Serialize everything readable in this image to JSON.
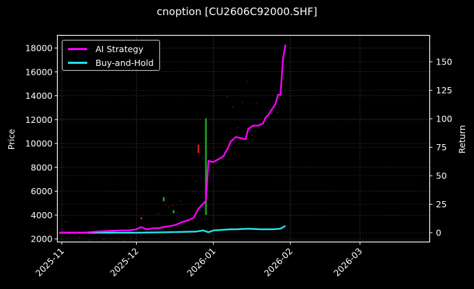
{
  "chart_data": {
    "type": "line",
    "title": "cnoption [CU2606C92000.SHF]",
    "xlabel": "",
    "ylabel": "Price",
    "ylabel_right": "Return",
    "x_tick_labels": [
      "2025-11",
      "2025-12",
      "2026-01",
      "2026-02",
      "2026-03"
    ],
    "y_ticks_left": [
      2000,
      4000,
      6000,
      8000,
      10000,
      12000,
      14000,
      16000,
      18000
    ],
    "y_ticks_right": [
      0,
      25,
      50,
      75,
      100,
      125,
      150
    ],
    "ylim_left": [
      1800,
      19100
    ],
    "ylim_right": [
      -5,
      173
    ],
    "grid": true,
    "legend_position": "upper left",
    "background": "#000000",
    "series": [
      {
        "name": "AI Strategy",
        "axis": "right",
        "color": "#ff00ff",
        "x": [
          "2025-10-31",
          "2025-11-05",
          "2025-11-10",
          "2025-11-15",
          "2025-11-20",
          "2025-11-25",
          "2025-11-28",
          "2025-12-01",
          "2025-12-03",
          "2025-12-05",
          "2025-12-08",
          "2025-12-10",
          "2025-12-12",
          "2025-12-15",
          "2025-12-17",
          "2025-12-19",
          "2025-12-22",
          "2025-12-24",
          "2025-12-26",
          "2025-12-29",
          "2025-12-30",
          "2026-01-01",
          "2026-01-05",
          "2026-01-07",
          "2026-01-08",
          "2026-01-10",
          "2026-01-12",
          "2026-01-14",
          "2026-01-15",
          "2026-01-17",
          "2026-01-19",
          "2026-01-21",
          "2026-01-22",
          "2026-01-23",
          "2026-01-26",
          "2026-01-27",
          "2026-01-28",
          "2026-01-29",
          "2026-01-30"
        ],
        "values": [
          0,
          0,
          0,
          1,
          1.5,
          2,
          2,
          3,
          5,
          3,
          4,
          4,
          5,
          6,
          7,
          9,
          11,
          13,
          21,
          28,
          63,
          62,
          67,
          75,
          80,
          84,
          83,
          82,
          91,
          94,
          94,
          96,
          101,
          103,
          113,
          121,
          121,
          152,
          165
        ],
        "end_value": 165
      },
      {
        "name": "Buy-and-Hold",
        "axis": "right",
        "color": "#22e5f0",
        "x": [
          "2025-10-31",
          "2025-11-15",
          "2025-12-01",
          "2025-12-15",
          "2025-12-25",
          "2025-12-28",
          "2025-12-30",
          "2026-01-01",
          "2026-01-08",
          "2026-01-10",
          "2026-01-15",
          "2026-01-20",
          "2026-01-25",
          "2026-01-28",
          "2026-01-30"
        ],
        "values": [
          0,
          0,
          0,
          0.5,
          1,
          2,
          0.5,
          2,
          3,
          3,
          3.5,
          3,
          3,
          3.5,
          6
        ],
        "end_value": 6
      },
      {
        "name": "Price candles (OHLC, faint)",
        "axis": "left",
        "type": "candlestick",
        "notable_candles": [
          {
            "date": "2025-12-12",
            "color": "#22aa22",
            "low": 5150,
            "high": 5500
          },
          {
            "date": "2025-12-16",
            "color": "#22aa22",
            "low": 4150,
            "high": 4400
          },
          {
            "date": "2025-12-03",
            "color": "#e0201a",
            "low": 3650,
            "high": 3800
          },
          {
            "date": "2025-12-26",
            "color": "#e0201a",
            "low": 9200,
            "high": 9900
          },
          {
            "date": "2025-12-29",
            "color": "#22aa22",
            "low": 4000,
            "high": 12100
          }
        ]
      }
    ]
  },
  "legend": {
    "items": [
      {
        "label": "AI Strategy",
        "color": "#ff00ff"
      },
      {
        "label": "Buy-and-Hold",
        "color": "#22e5f0"
      }
    ]
  }
}
